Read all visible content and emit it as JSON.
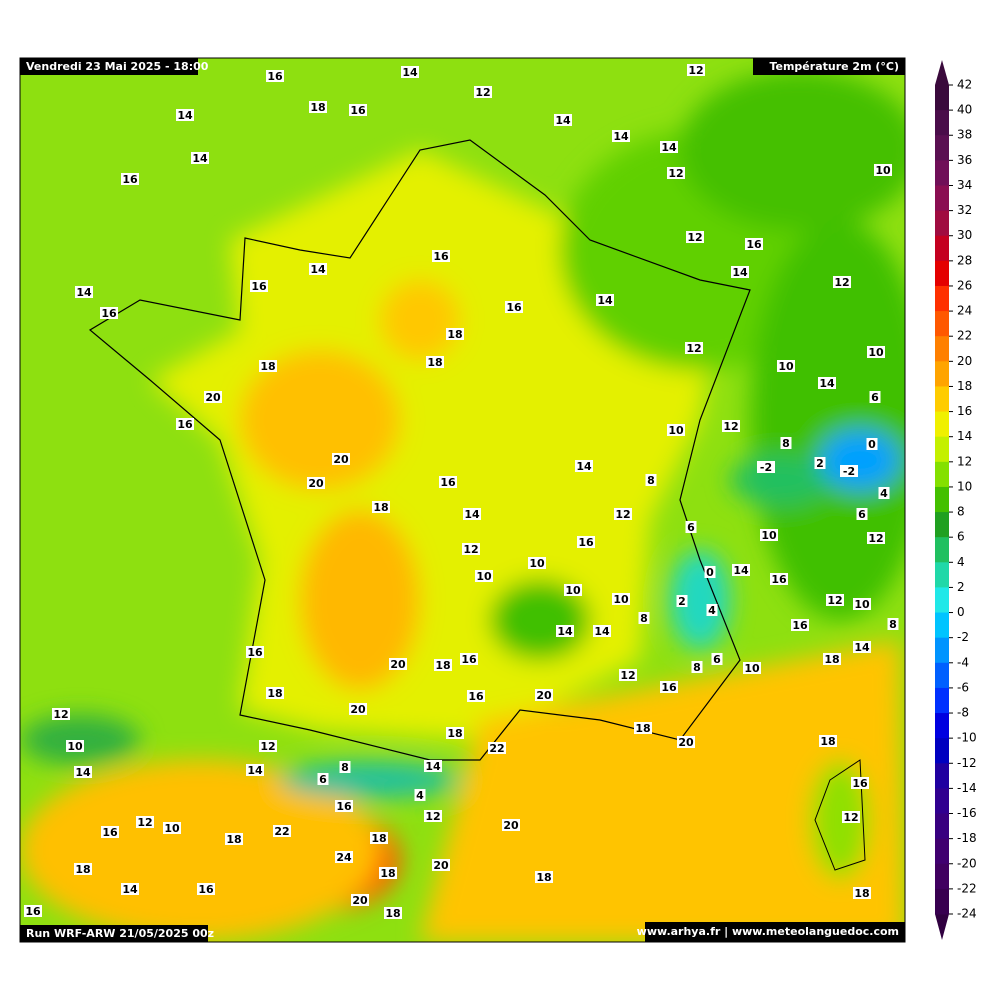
{
  "header": {
    "date": "Vendredi 23 Mai 2025 - 18:00",
    "variable": "Température 2m (°C)",
    "run": "Run WRF-ARW 21/05/2025 00z",
    "credit": "www.arhya.fr | www.meteolanguedoc.com"
  },
  "colorbar": {
    "ticks": [
      42,
      40,
      38,
      36,
      34,
      32,
      30,
      28,
      26,
      24,
      22,
      20,
      18,
      16,
      14,
      12,
      10,
      8,
      6,
      4,
      2,
      0,
      -2,
      -4,
      -6,
      -8,
      -10,
      -12,
      -14,
      -16,
      -18,
      -20,
      -22,
      -24
    ],
    "colors": [
      "#3a0a3c",
      "#4a0d4a",
      "#5a1052",
      "#700f58",
      "#8a0e52",
      "#a00c40",
      "#c40020",
      "#e40000",
      "#ff3000",
      "#ff5800",
      "#ff8000",
      "#ffa400",
      "#ffcc00",
      "#f0f000",
      "#c4f000",
      "#84e000",
      "#44c000",
      "#20a020",
      "#20c060",
      "#20d8a8",
      "#20e8e8",
      "#00c4ff",
      "#0094ff",
      "#0060ff",
      "#0030ff",
      "#0000e0",
      "#0000c0",
      "#2000a0",
      "#300090",
      "#380080",
      "#400070",
      "#400060",
      "#380050",
      "#300040"
    ]
  },
  "labels": [
    16,
    14,
    12,
    12,
    18,
    16,
    14,
    14,
    14,
    14,
    14,
    12,
    16,
    10,
    12,
    16,
    16,
    14,
    14,
    16,
    14,
    12,
    16,
    16,
    14,
    18,
    12,
    18,
    18,
    10,
    10,
    20,
    14,
    6,
    16,
    10,
    12,
    8,
    0,
    20,
    2,
    -2,
    -2,
    14,
    8,
    20,
    16,
    4,
    18,
    14,
    12,
    6,
    6,
    10,
    12,
    16,
    12,
    10,
    10,
    0,
    14,
    16,
    10,
    2,
    10,
    4,
    12,
    10,
    8,
    14,
    14,
    16,
    8,
    16,
    20,
    18,
    16,
    18,
    14,
    8,
    6,
    10,
    12,
    16,
    18,
    16,
    20,
    20,
    12,
    18,
    18,
    22,
    20,
    10,
    18,
    12,
    14,
    14,
    8,
    14,
    6,
    16,
    4,
    16,
    12,
    12,
    10,
    12,
    20,
    22,
    16,
    18,
    18,
    24,
    20,
    18,
    18,
    18,
    14,
    16,
    18,
    20,
    16,
    18
  ]
}
